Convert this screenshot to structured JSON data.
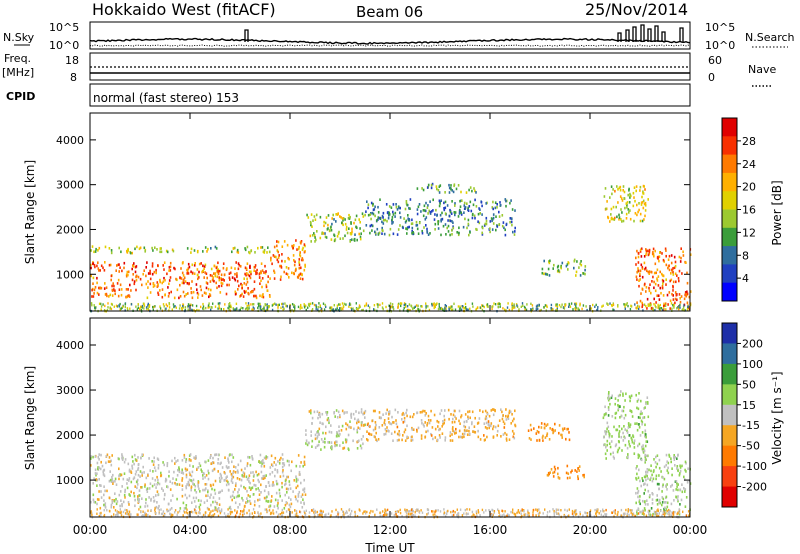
{
  "header": {
    "station": "Hokkaido West (fitACF)",
    "beam": "Beam 06",
    "date": "25/Nov/2014"
  },
  "top_panels": {
    "nsky_label": "N.Sky",
    "nsky_ticks": [
      "10^5",
      "10^0"
    ],
    "nsearch_label": "N.Search",
    "nsearch_ticks": [
      "10^5",
      "10^0"
    ],
    "freq_label": "Freq.",
    "freq_unit": "[MHz]",
    "freq_ticks": [
      "18",
      "8"
    ],
    "nave_label": "Nave",
    "nave_ticks": [
      "60",
      "0"
    ],
    "cpid_label": "CPID",
    "cpid_text": "normal (fast stereo) 153"
  },
  "chart_data": [
    {
      "type": "heatmap",
      "name": "power",
      "ylabel": "Slant Range [km]",
      "ylim": [
        180,
        4600
      ],
      "yticks": [
        "4000",
        "3000",
        "2000",
        "1000"
      ],
      "xlim": [
        0,
        24
      ],
      "xticks": [
        "00:00",
        "04:00",
        "08:00",
        "12:00",
        "16:00",
        "20:00",
        "00:00"
      ],
      "colorbar": {
        "label": "Power [dB]",
        "ticks": [
          "28",
          "24",
          "20",
          "16",
          "12",
          "8",
          "4"
        ],
        "colors": [
          "#e00000",
          "#f83000",
          "#ff7a00",
          "#ffb000",
          "#e0d000",
          "#9cc930",
          "#3a9d3a",
          "#2f6e9e",
          "#2040c0",
          "#0000ff"
        ]
      },
      "regions": [
        {
          "t0": 0.0,
          "t1": 7.2,
          "r0": 500,
          "r1": 1300,
          "level": 24
        },
        {
          "t0": 0.0,
          "t1": 7.2,
          "r0": 1500,
          "r1": 1650,
          "level": 14
        },
        {
          "t0": 7.2,
          "t1": 8.6,
          "r0": 900,
          "r1": 1800,
          "level": 22
        },
        {
          "t0": 8.6,
          "t1": 11.0,
          "r0": 1750,
          "r1": 2400,
          "level": 14
        },
        {
          "t0": 11.0,
          "t1": 17.0,
          "r0": 1900,
          "r1": 2700,
          "level": 8
        },
        {
          "t0": 13.0,
          "t1": 15.5,
          "r0": 2850,
          "r1": 3050,
          "level": 10
        },
        {
          "t0": 18.0,
          "t1": 19.8,
          "r0": 1000,
          "r1": 1350,
          "level": 12
        },
        {
          "t0": 20.5,
          "t1": 22.3,
          "r0": 2200,
          "r1": 3000,
          "level": 16
        },
        {
          "t0": 21.8,
          "t1": 24.0,
          "r0": 250,
          "r1": 1600,
          "level": 24
        }
      ]
    },
    {
      "type": "heatmap",
      "name": "velocity",
      "ylabel": "Slant Range [km]",
      "ylim": [
        180,
        4600
      ],
      "yticks": [
        "4000",
        "3000",
        "2000",
        "1000"
      ],
      "xlim": [
        0,
        24
      ],
      "xticks": [
        "00:00",
        "04:00",
        "08:00",
        "12:00",
        "16:00",
        "20:00",
        "00:00"
      ],
      "xlabel": "Time UT",
      "colorbar": {
        "label": "Velocity [m s⁻¹]",
        "ticks": [
          "200",
          "100",
          "50",
          "15",
          "-15",
          "-50",
          "-100",
          "-200"
        ],
        "colors": [
          "#1e2fa8",
          "#2f6e9e",
          "#3a9d3a",
          "#8fd24f",
          "#c0c0c0",
          "#f5a623",
          "#ff7a00",
          "#f84010",
          "#e00000"
        ]
      },
      "regions": [
        {
          "t0": 0.0,
          "t1": 8.6,
          "r0": 400,
          "r1": 1600,
          "level": 0
        },
        {
          "t0": 8.6,
          "t1": 11.0,
          "r0": 1700,
          "r1": 2600,
          "level": 0
        },
        {
          "t0": 11.0,
          "t1": 17.0,
          "r0": 1900,
          "r1": 2600,
          "level": -40
        },
        {
          "t0": 17.5,
          "t1": 19.2,
          "r0": 1900,
          "r1": 2300,
          "level": -70
        },
        {
          "t0": 18.2,
          "t1": 19.8,
          "r0": 1050,
          "r1": 1350,
          "level": -80
        },
        {
          "t0": 20.5,
          "t1": 22.3,
          "r0": 1500,
          "r1": 3000,
          "level": 40
        },
        {
          "t0": 21.8,
          "t1": 24.0,
          "r0": 250,
          "r1": 1600,
          "level": 40
        }
      ]
    }
  ]
}
